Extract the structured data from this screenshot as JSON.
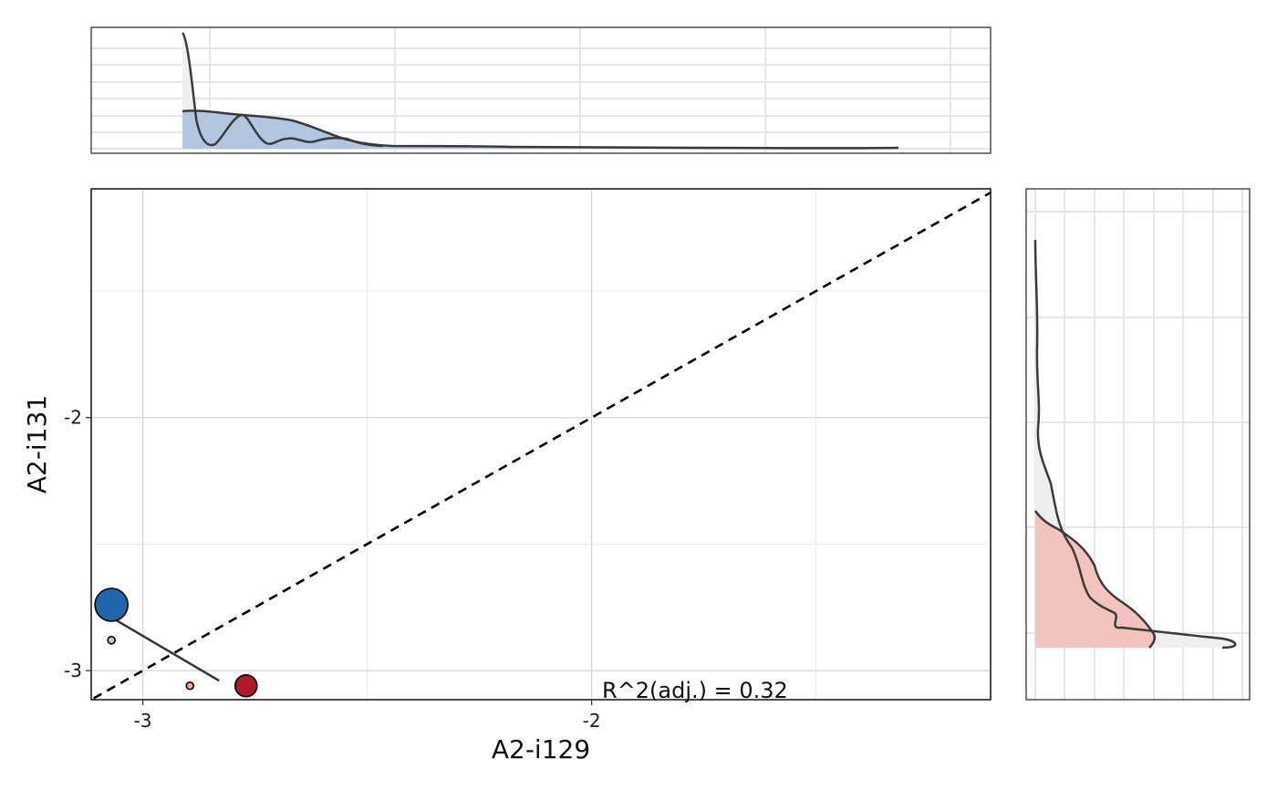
{
  "chart_data": {
    "type": "scatter",
    "xlabel": "A2-i129",
    "ylabel": "A2-i131",
    "xlim": [
      -3.115,
      -1.111
    ],
    "ylim": [
      -3.115,
      -1.096
    ],
    "xticks": [
      -3,
      -2
    ],
    "yticks": [
      -3,
      -2
    ],
    "grid": true,
    "points": [
      {
        "x": -3.07,
        "y": -2.74,
        "size": "large",
        "color": "#2166ac"
      },
      {
        "x": -3.07,
        "y": -2.88,
        "size": "small",
        "color": "#a6cde3"
      },
      {
        "x": -2.895,
        "y": -3.06,
        "size": "small",
        "color": "#f4a582"
      },
      {
        "x": -2.77,
        "y": -3.06,
        "size": "medium",
        "color": "#b2182b"
      }
    ],
    "fit_line": {
      "x": [
        -3.07,
        -2.83
      ],
      "y": [
        -2.79,
        -3.04
      ],
      "color": "#333333"
    },
    "identity_line": {
      "style": "dashed",
      "color": "#000000"
    },
    "annotation": "R^2(adj.) = 0.32",
    "marginal_top": {
      "type": "density",
      "fill": "#b3c6e1",
      "stroke": "#3a3a3a"
    },
    "marginal_right": {
      "type": "density",
      "fill": "#f2c4bd",
      "stroke": "#3a3a3a"
    }
  }
}
